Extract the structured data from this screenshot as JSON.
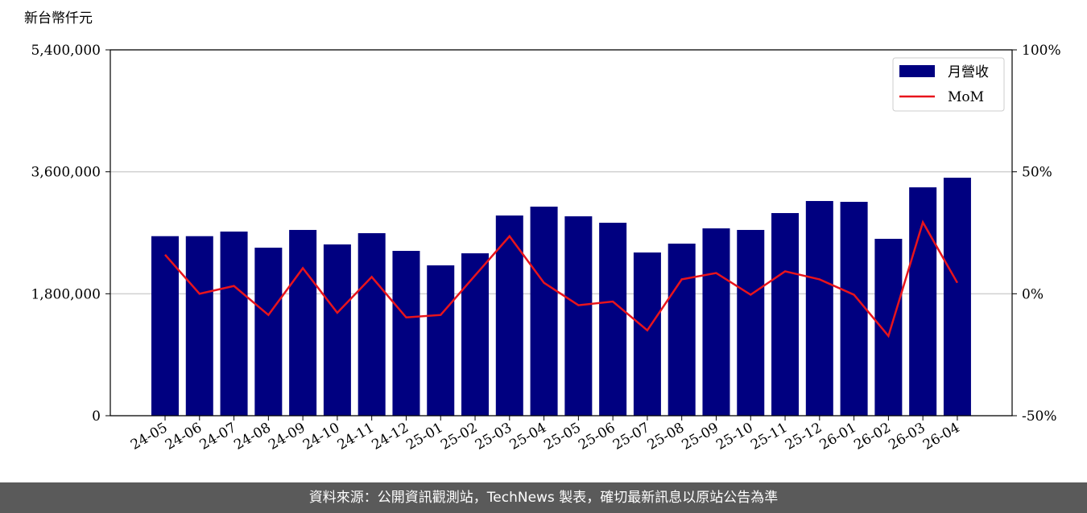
{
  "chart_data": {
    "type": "bar_line",
    "y_axis_label": "新台幣仟元",
    "source": "資料來源：公開資訊觀測站，TechNews 製表，確切最新訊息以原站公告為準",
    "categories": [
      "24-05",
      "24-06",
      "24-07",
      "24-08",
      "24-09",
      "24-10",
      "24-11",
      "24-12",
      "25-01",
      "25-02",
      "25-03",
      "25-04",
      "25-05",
      "25-06",
      "25-07",
      "25-08",
      "25-09",
      "25-10",
      "25-11",
      "25-12",
      "26-01",
      "26-02",
      "26-03",
      "26-04"
    ],
    "series": [
      {
        "name": "月營收",
        "color": "#000080",
        "values": [
          2650000,
          2650000,
          2718000,
          2480000,
          2742000,
          2528000,
          2694000,
          2433000,
          2219000,
          2397000,
          2955000,
          3086000,
          2943000,
          2848000,
          2409000,
          2540000,
          2765000,
          2742000,
          2991000,
          3169000,
          3157000,
          2611000,
          3371000,
          3513000
        ]
      },
      {
        "name": "MoM",
        "color": "#e8141c",
        "axis": "y2",
        "values": [
          16,
          0,
          3.2,
          -8.7,
          10.5,
          -7.8,
          6.9,
          -9.7,
          -8.7,
          7.5,
          23.6,
          4.5,
          -4.7,
          -3.2,
          -15,
          5.9,
          8.5,
          -0.4,
          9.2,
          5.9,
          -0.4,
          -17.3,
          29.3,
          4.5
        ]
      }
    ],
    "ylim": [
      0,
      5400000
    ],
    "yticks": [
      0,
      {
        "value": 1800000,
        "label": "1,800,000"
      },
      {
        "value": 3600000,
        "label": "3,600,000"
      },
      {
        "value": 5400000,
        "label": "5,400,000"
      }
    ],
    "y2lim": [
      -50,
      100
    ],
    "y2ticks": [
      {
        "value": -50,
        "label": "-50%"
      },
      {
        "value": 0,
        "label": "0%"
      },
      {
        "value": 50,
        "label": "50%"
      },
      {
        "value": 100,
        "label": "100%"
      }
    ],
    "grid": true,
    "legend": "upper right"
  }
}
